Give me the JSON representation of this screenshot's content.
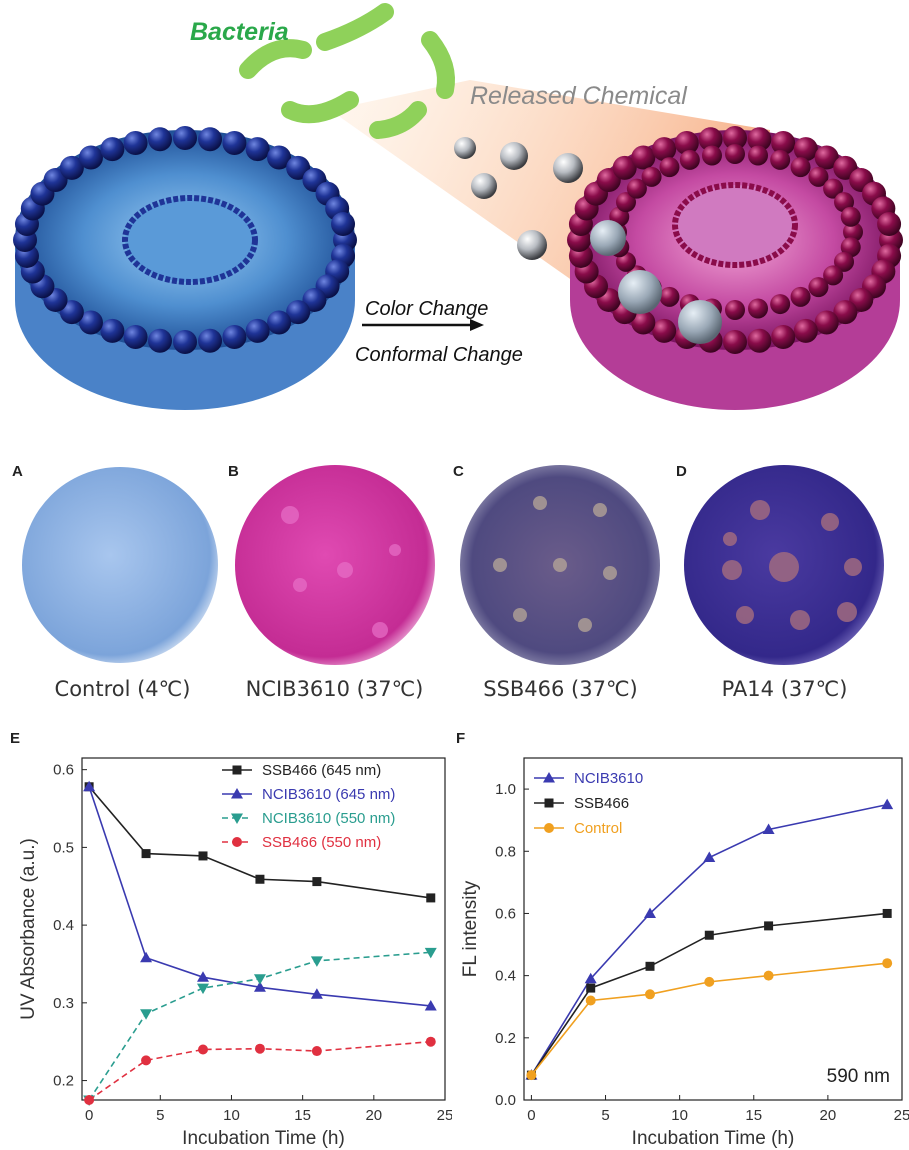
{
  "schematic": {
    "bacteria_label": "Bacteria",
    "released_label": "Released Chemical",
    "color_change_label": "Color Change",
    "conformal_change_label": "Conformal Change",
    "colors": {
      "blue_bead": "#1d2f8f",
      "magenta_bead": "#8a0c4a",
      "bacteria": "#8fd15a",
      "label_green": "#2aa84a",
      "label_gray": "#8a8a8a"
    }
  },
  "plates": [
    {
      "letter": "A",
      "caption": "Control (4℃)",
      "color": "#8fb2e0"
    },
    {
      "letter": "B",
      "caption": "NCIB3610 (37℃)",
      "color": "#d0369e"
    },
    {
      "letter": "C",
      "caption": "SSB466 (37℃)",
      "color": "#5a4f8a"
    },
    {
      "letter": "D",
      "caption": "PA14 (37℃)",
      "color": "#3b2f8f"
    }
  ],
  "chart_data": [
    {
      "panel": "E",
      "type": "line",
      "xlabel": "Incubation Time (h)",
      "ylabel": "UV Absorbance (a.u.)",
      "xlim": [
        -0.5,
        25
      ],
      "ylim": [
        0.175,
        0.615
      ],
      "xticks": [
        0,
        5,
        10,
        15,
        20,
        25
      ],
      "yticks": [
        0.2,
        0.3,
        0.4,
        0.5,
        0.6
      ],
      "ytick_labels": [
        "0.2",
        "0.3",
        "0.4",
        "0.5",
        "0.6"
      ],
      "legend_position": "top-right",
      "series": [
        {
          "name": "SSB466 (645 nm)",
          "x": [
            0,
            4,
            8,
            12,
            16,
            24
          ],
          "y": [
            0.578,
            0.492,
            0.489,
            0.459,
            0.456,
            0.435
          ],
          "color": "#222222",
          "marker": "square",
          "dashed": false
        },
        {
          "name": "NCIB3610 (645 nm)",
          "x": [
            0,
            4,
            8,
            12,
            16,
            24
          ],
          "y": [
            0.578,
            0.358,
            0.333,
            0.32,
            0.311,
            0.296
          ],
          "color": "#3a3ab0",
          "marker": "triangle-up",
          "dashed": false
        },
        {
          "name": "NCIB3610 (550 nm)",
          "x": [
            0,
            4,
            8,
            12,
            16,
            24
          ],
          "y": [
            0.175,
            0.286,
            0.319,
            0.331,
            0.354,
            0.365
          ],
          "color": "#2a9d8f",
          "marker": "triangle-down",
          "dashed": true
        },
        {
          "name": "SSB466 (550 nm)",
          "x": [
            0,
            4,
            8,
            12,
            16,
            24
          ],
          "y": [
            0.175,
            0.226,
            0.24,
            0.241,
            0.238,
            0.25
          ],
          "color": "#e03040",
          "marker": "circle",
          "dashed": true
        }
      ]
    },
    {
      "panel": "F",
      "type": "line",
      "xlabel": "Incubation Time (h)",
      "ylabel": "FL intensity",
      "xlim": [
        -0.5,
        25
      ],
      "ylim": [
        0.0,
        1.1
      ],
      "xticks": [
        0,
        5,
        10,
        15,
        20,
        25
      ],
      "yticks": [
        0.0,
        0.2,
        0.4,
        0.6,
        0.8,
        1.0
      ],
      "ytick_labels": [
        "0.0",
        "0.2",
        "0.4",
        "0.6",
        "0.8",
        "1.0"
      ],
      "annotation": "590 nm",
      "legend_position": "top-left",
      "series": [
        {
          "name": "NCIB3610",
          "x": [
            0,
            4,
            8,
            12,
            16,
            24
          ],
          "y": [
            0.08,
            0.39,
            0.6,
            0.78,
            0.87,
            0.95
          ],
          "color": "#3a3ab0",
          "marker": "triangle-up",
          "dashed": false
        },
        {
          "name": "SSB466",
          "x": [
            0,
            4,
            8,
            12,
            16,
            24
          ],
          "y": [
            0.08,
            0.36,
            0.43,
            0.53,
            0.56,
            0.6
          ],
          "color": "#222222",
          "marker": "square",
          "dashed": false
        },
        {
          "name": "Control",
          "x": [
            0,
            4,
            8,
            12,
            16,
            24
          ],
          "y": [
            0.08,
            0.32,
            0.34,
            0.38,
            0.4,
            0.44
          ],
          "color": "#f0a020",
          "marker": "circle",
          "dashed": false
        }
      ]
    }
  ]
}
